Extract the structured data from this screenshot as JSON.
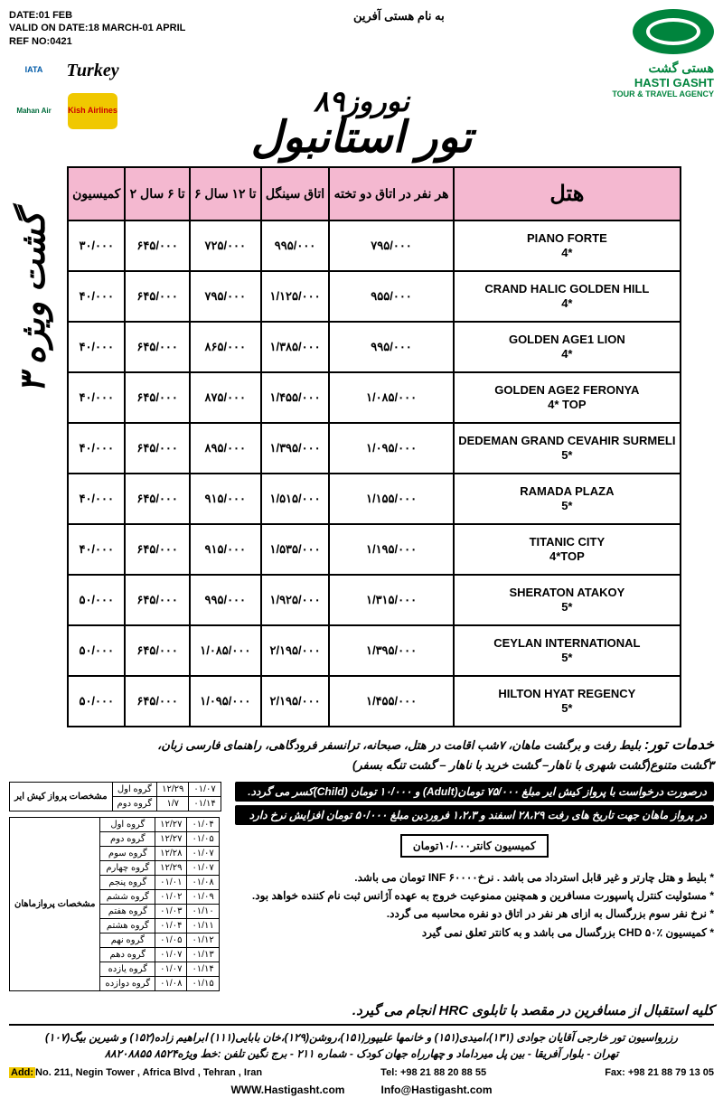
{
  "header": {
    "date": "DATE:01 FEB",
    "valid": "VALID ON DATE:18 MARCH-01 APRIL",
    "ref": "REF NO:0421",
    "bismillah": "به نام هستی آفرین",
    "agency_fa": "هستی گشت",
    "agency_en": "HASTI GASHT",
    "agency_sub": "TOUR & TRAVEL AGENCY",
    "logos": {
      "iata": "IATA",
      "turkey": "Turkey",
      "mahan": "Mahan Air",
      "kish": "Kish Airlines"
    }
  },
  "title": {
    "small": "نوروز۸۹",
    "big": "تور استانبول"
  },
  "side_label": "۳ گشت ویژه",
  "table": {
    "headers": [
      "کمیسیون",
      "۲ تا ۶ سال",
      "۶ تا ۱۲ سال",
      "اتاق سینگل",
      "هر نفر در اتاق دو تخته",
      "هتل"
    ],
    "rows": [
      {
        "hotel": "PIANO FORTE",
        "stars": "4*",
        "dbl": "۷۹۵/۰۰۰",
        "sgl": "۹۹۵/۰۰۰",
        "c612": "۷۲۵/۰۰۰",
        "c26": "۶۴۵/۰۰۰",
        "comm": "۳۰/۰۰۰"
      },
      {
        "hotel": "CRAND HALIC GOLDEN HILL",
        "stars": "4*",
        "dbl": "۹۵۵/۰۰۰",
        "sgl": "۱/۱۲۵/۰۰۰",
        "c612": "۷۹۵/۰۰۰",
        "c26": "۶۴۵/۰۰۰",
        "comm": "۴۰/۰۰۰"
      },
      {
        "hotel": "GOLDEN AGE1 LION",
        "stars": "4*",
        "dbl": "۹۹۵/۰۰۰",
        "sgl": "۱/۳۸۵/۰۰۰",
        "c612": "۸۶۵/۰۰۰",
        "c26": "۶۴۵/۰۰۰",
        "comm": "۴۰/۰۰۰"
      },
      {
        "hotel": "GOLDEN AGE2 FERONYA",
        "stars": "4* TOP",
        "dbl": "۱/۰۸۵/۰۰۰",
        "sgl": "۱/۴۵۵/۰۰۰",
        "c612": "۸۷۵/۰۰۰",
        "c26": "۶۴۵/۰۰۰",
        "comm": "۴۰/۰۰۰"
      },
      {
        "hotel": "DEDEMAN GRAND CEVAHIR SURMELI",
        "stars": "5*",
        "dbl": "۱/۰۹۵/۰۰۰",
        "sgl": "۱/۳۹۵/۰۰۰",
        "c612": "۸۹۵/۰۰۰",
        "c26": "۶۴۵/۰۰۰",
        "comm": "۴۰/۰۰۰"
      },
      {
        "hotel": "RAMADA PLAZA",
        "stars": "5*",
        "dbl": "۱/۱۵۵/۰۰۰",
        "sgl": "۱/۵۱۵/۰۰۰",
        "c612": "۹۱۵/۰۰۰",
        "c26": "۶۴۵/۰۰۰",
        "comm": "۴۰/۰۰۰"
      },
      {
        "hotel": "TITANIC CITY",
        "stars": "4*TOP",
        "dbl": "۱/۱۹۵/۰۰۰",
        "sgl": "۱/۵۳۵/۰۰۰",
        "c612": "۹۱۵/۰۰۰",
        "c26": "۶۴۵/۰۰۰",
        "comm": "۴۰/۰۰۰"
      },
      {
        "hotel": "SHERATON ATAKOY",
        "stars": "5*",
        "dbl": "۱/۳۱۵/۰۰۰",
        "sgl": "۱/۹۲۵/۰۰۰",
        "c612": "۹۹۵/۰۰۰",
        "c26": "۶۴۵/۰۰۰",
        "comm": "۵۰/۰۰۰"
      },
      {
        "hotel": "CEYLAN INTERNATIONAL",
        "stars": "5*",
        "dbl": "۱/۳۹۵/۰۰۰",
        "sgl": "۲/۱۹۵/۰۰۰",
        "c612": "۱/۰۸۵/۰۰۰",
        "c26": "۶۴۵/۰۰۰",
        "comm": "۵۰/۰۰۰"
      },
      {
        "hotel": "HILTON HYAT REGENCY",
        "stars": "5*",
        "dbl": "۱/۴۵۵/۰۰۰",
        "sgl": "۲/۱۹۵/۰۰۰",
        "c612": "۱/۰۹۵/۰۰۰",
        "c26": "۶۴۵/۰۰۰",
        "comm": "۵۰/۰۰۰"
      }
    ]
  },
  "services": {
    "label": "خدمات تور:",
    "line1": "بلیط رفت و برگشت ماهان، ۷شب اقامت در هتل، صبحانه، ترانسفر فرودگاهی، راهنمای فارسی زبان،",
    "line2": "۳گشت متنوع(گشت شهری با ناهار– گشت خرید با ناهار – گشت تنگه بسفر)"
  },
  "bars": {
    "bar1": "درصورت درخواست با پرواز کیش ایر مبلغ ۷۵/۰۰۰ تومان(Adult) و ۱۰/۰۰۰ تومان (Child)کسر می گردد.",
    "bar2": "در پرواز ماهان جهت تاریخ های رفت ۲۸،۲۹ اسفند و ۱،۲،۳ فروردین مبلغ ۵۰/۰۰۰ تومان افزایش نرخ دارد"
  },
  "commission_box": "کمیسیون کانتر۱۰/۰۰۰تومان",
  "bullets": [
    "بلیط و هتل چارتر و غیر قابل استرداد می باشد . نرخINF ۶۰۰۰۰ تومان می باشد.",
    "مسئولیت کنترل پاسپورت مسافرین و همچنین ممنوعیت خروج به عهده آژانس ثبت نام کننده خواهد بود.",
    "نرخ نفر سوم بزرگسال به ازای هر نفر در اتاق دو نفره محاسبه می گردد.",
    "کمیسیون CHD ۵۰٪ بزرگسال می باشد و به کانتر تعلق نمی گیرد"
  ],
  "pickup": "کلیه استقبال از مسافرین در مقصد با تابلوی HRC انجام می گیرد.",
  "sched_kish": {
    "title": "مشخصات پرواز کیش ایر",
    "rows": [
      {
        "g": "گروه اول",
        "a": "۱۲/۲۹",
        "b": "۰۱/۰۷"
      },
      {
        "g": "گروه دوم",
        "a": "۱/۷",
        "b": "۰۱/۱۴"
      }
    ]
  },
  "sched_mahan": {
    "title": "مشخصات پروازماهان",
    "rows": [
      {
        "g": "گروه اول",
        "a": "۱۲/۲۷",
        "b": "۰۱/۰۴"
      },
      {
        "g": "گروه دوم",
        "a": "۱۲/۲۷",
        "b": "۰۱/۰۵"
      },
      {
        "g": "گروه سوم",
        "a": "۱۲/۲۸",
        "b": "۰۱/۰۷"
      },
      {
        "g": "گروه چهارم",
        "a": "۱۲/۲۹",
        "b": "۰۱/۰۷"
      },
      {
        "g": "گروه پنجم",
        "a": "۰۱/۰۱",
        "b": "۰۱/۰۸"
      },
      {
        "g": "گروه ششم",
        "a": "۰۱/۰۲",
        "b": "۰۱/۰۹"
      },
      {
        "g": "گروه هفتم",
        "a": "۰۱/۰۳",
        "b": "۰۱/۱۰"
      },
      {
        "g": "گروه هشتم",
        "a": "۰۱/۰۴",
        "b": "۰۱/۱۱"
      },
      {
        "g": "گروه نهم",
        "a": "۰۱/۰۵",
        "b": "۰۱/۱۲"
      },
      {
        "g": "گروه دهم",
        "a": "۰۱/۰۷",
        "b": "۰۱/۱۳"
      },
      {
        "g": "گروه یازده",
        "a": "۰۱/۰۷",
        "b": "۰۱/۱۴"
      },
      {
        "g": "گروه دوازده",
        "a": "۰۱/۰۸",
        "b": "۰۱/۱۵"
      }
    ]
  },
  "footer": {
    "line1": "رزرواسیون تور خارجی آقایان جوادی (۱۳۱)،امیدی(۱۵۱) و خانمها علیپور(۱۵۱)،روشن(۱۲۹)،خان بابایی(۱۱۱) ابراهیم زاده(۱۵۲) و شیرین بیگ(۱۰۷)",
    "line2": "تهران - بلوار آفریقا - بین پل میرداماد و چهارراه جهان کودک - شماره ۲۱۱ - برج نگین    تلفن :خط ویژه۸۵۲۴   ۸۸۲۰۸۸۵۵",
    "addr_label": "Add:",
    "addr": "No. 211, Negin Tower , Africa Blvd , Tehran , Iran",
    "tel": "Tel: +98 21 88 20 88 55",
    "fax": "Fax: +98 21 88 79 13 05",
    "web": "WWW.Hastigasht.com",
    "email": "Info@Hastigasht.com"
  }
}
